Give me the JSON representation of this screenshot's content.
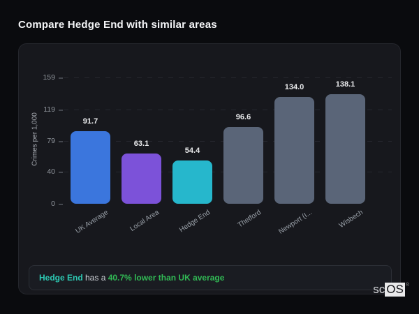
{
  "page": {
    "title": "Compare Hedge End with similar areas"
  },
  "chart_data": {
    "type": "bar",
    "title": "",
    "xlabel": "",
    "ylabel": "Crimes per 1,000",
    "ylim": [
      0,
      159
    ],
    "yticks": [
      0,
      40,
      79,
      119,
      159
    ],
    "grid": "horizontal-dashed",
    "legend": "none",
    "categories": [
      "UK Average",
      "Local Area",
      "Hedge End",
      "Thetford",
      "Newport (I...",
      "Wisbech"
    ],
    "values": [
      91.7,
      63.1,
      54.4,
      96.6,
      134.0,
      138.1
    ],
    "value_labels": [
      "91.7",
      "63.1",
      "54.4",
      "96.6",
      "134.0",
      "138.1"
    ],
    "bar_colors": [
      "#3b76dd",
      "#7c52d9",
      "#26b7cc",
      "#5a6578",
      "#5a6578",
      "#5a6578"
    ]
  },
  "summary": {
    "area": "Hedge End",
    "connector": " has a ",
    "comparison": "40.7% lower than UK average",
    "area_color": "#2dc9b3",
    "comparison_color": "#31ba55"
  },
  "logo": {
    "prefix": "sc",
    "suffix": "OS",
    "registered": "®"
  }
}
